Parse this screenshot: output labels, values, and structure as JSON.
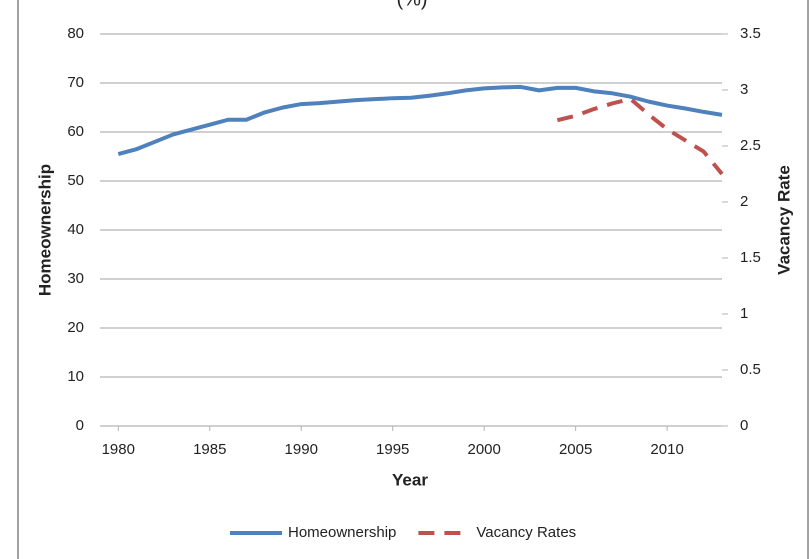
{
  "chart_data": {
    "type": "line",
    "title": "(%)",
    "x_label": "Year",
    "y_label": "Homeownership",
    "y2_label": "Vacancy Rate",
    "x": [
      1980,
      1981,
      1982,
      1983,
      1984,
      1985,
      1986,
      1987,
      1988,
      1989,
      1990,
      1991,
      1992,
      1993,
      1994,
      1995,
      1996,
      1997,
      1998,
      1999,
      2000,
      2001,
      2002,
      2003,
      2004,
      2005,
      2006,
      2007,
      2008,
      2009,
      2010,
      2011,
      2012,
      2013
    ],
    "series": [
      {
        "name": "Homeownership",
        "color": "#4f81bd",
        "dash": false,
        "values": [
          55.5,
          56.5,
          58,
          59.5,
          60.5,
          61.5,
          62.5,
          62.5,
          64,
          65,
          65.7,
          65.9,
          66.2,
          66.5,
          66.7,
          66.9,
          67,
          67.4,
          67.9,
          68.5,
          68.9,
          69.1,
          69.2,
          68.5,
          69,
          69,
          68.3,
          67.9,
          67.2,
          66.2,
          65.4,
          64.8,
          64.1,
          63.5
        ]
      },
      {
        "name": "Vacancy Rates",
        "color": "#c0504d",
        "dash": true,
        "axis": "y2",
        "values": [
          null,
          null,
          null,
          null,
          null,
          null,
          null,
          null,
          null,
          null,
          null,
          null,
          null,
          null,
          null,
          null,
          null,
          null,
          null,
          null,
          null,
          null,
          null,
          null,
          2.73,
          2.77,
          2.83,
          2.88,
          2.92,
          2.78,
          2.65,
          2.55,
          2.45,
          2.25
        ]
      }
    ],
    "xlim": [
      1979,
      2013
    ],
    "xticks": [
      1980,
      1985,
      1990,
      1995,
      2000,
      2005,
      2010
    ],
    "ylim": [
      0,
      80
    ],
    "yticks": [
      0,
      10,
      20,
      30,
      40,
      50,
      60,
      70,
      80
    ],
    "y2lim": [
      0,
      3.5
    ],
    "y2ticks": [
      0,
      0.5,
      1,
      1.5,
      2,
      2.5,
      3,
      3.5
    ],
    "grid": true,
    "legend": "bottom"
  }
}
